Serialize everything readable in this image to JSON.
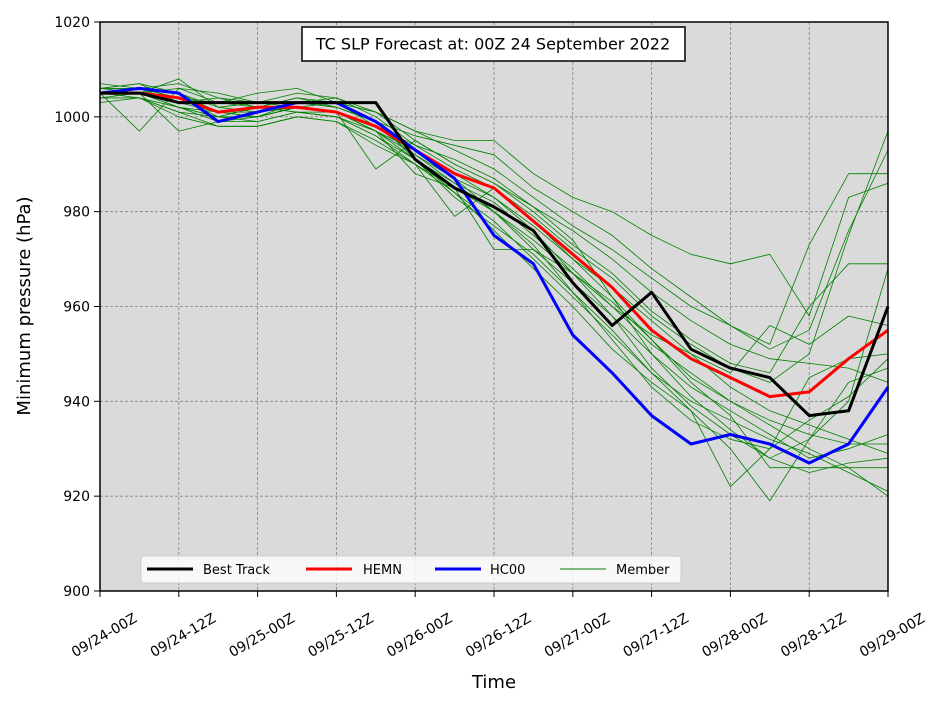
{
  "chart_data": {
    "type": "line",
    "title": "TC SLP Forecast at: 00Z 24 September 2022",
    "xlabel": "Time",
    "ylabel": "Minimum pressure (hPa)",
    "ylim": [
      900,
      1020
    ],
    "yticks": [
      900,
      920,
      940,
      960,
      980,
      1000,
      1020
    ],
    "x_step_hours": 6,
    "xticks": [
      "09/24-00Z",
      "09/24-12Z",
      "09/25-00Z",
      "09/25-12Z",
      "09/26-00Z",
      "09/26-12Z",
      "09/27-00Z",
      "09/27-12Z",
      "09/28-00Z",
      "09/28-12Z",
      "09/29-00Z"
    ],
    "grid": true,
    "background_color": "#dadada",
    "legend_position": "lower-left",
    "series": [
      {
        "name": "Best Track",
        "color": "#000000",
        "values": [
          1005,
          1005,
          1003,
          1003,
          1003,
          1003,
          1003,
          1003,
          991,
          985,
          981,
          976,
          965,
          956,
          963,
          951,
          947,
          945,
          937,
          938,
          960
        ]
      },
      {
        "name": "HEMN",
        "color": "#ff0000",
        "values": [
          1005,
          1005,
          1004,
          1001,
          1002,
          1002,
          1001,
          998,
          993,
          988,
          985,
          978,
          971,
          964,
          955,
          949,
          945,
          941,
          942,
          949,
          955
        ]
      },
      {
        "name": "HC00",
        "color": "#0000ff",
        "values": [
          1005,
          1006,
          1005,
          999,
          1001,
          1003,
          1003,
          999,
          993,
          987,
          975,
          969,
          954,
          946,
          937,
          931,
          933,
          931,
          927,
          931,
          943
        ]
      },
      {
        "name": "Member",
        "color": "#008000",
        "members": [
          [
            1006,
            1006,
            1007,
            1004,
            1002,
            1001,
            1000,
            997,
            991,
            986,
            982,
            975,
            968,
            960,
            952,
            946,
            940,
            935,
            930,
            926,
            920
          ],
          [
            1004,
            1005,
            1006,
            1003,
            1002,
            1004,
            1002,
            999,
            993,
            987,
            980,
            972,
            965,
            958,
            950,
            943,
            938,
            933,
            928,
            930,
            933
          ],
          [
            1005,
            1005,
            1008,
            1002,
            1003,
            1003,
            1004,
            1000,
            994,
            989,
            985,
            979,
            972,
            966,
            958,
            952,
            947,
            944,
            950,
            975,
            997
          ],
          [
            1007,
            1006,
            1004,
            1003,
            1005,
            1006,
            1003,
            1001,
            995,
            990,
            986,
            981,
            976,
            970,
            963,
            957,
            952,
            949,
            948,
            947,
            944
          ],
          [
            1005,
            1004,
            1002,
            1001,
            1000,
            1002,
            1001,
            998,
            992,
            986,
            980,
            974,
            967,
            958,
            947,
            939,
            933,
            928,
            932,
            940,
            968
          ],
          [
            1003,
            1004,
            1001,
            1000,
            999,
            1001,
            1000,
            996,
            990,
            984,
            978,
            970,
            962,
            954,
            946,
            940,
            936,
            932,
            929,
            925,
            921
          ],
          [
            1006,
            1007,
            1003,
            1004,
            1003,
            1005,
            1004,
            1001,
            997,
            993,
            989,
            983,
            977,
            972,
            966,
            960,
            956,
            952,
            973,
            988,
            988
          ],
          [
            1005,
            997,
            1006,
            1005,
            1003,
            1002,
            1001,
            989,
            995,
            990,
            986,
            980,
            973,
            967,
            959,
            953,
            948,
            946,
            960,
            969,
            969
          ],
          [
            1006,
            1006,
            1005,
            1002,
            1001,
            1003,
            1002,
            999,
            996,
            994,
            992,
            985,
            980,
            975,
            968,
            962,
            956,
            951,
            955,
            976,
            993
          ],
          [
            1004,
            1004,
            1000,
            998,
            998,
            1000,
            999,
            995,
            990,
            979,
            985,
            978,
            970,
            962,
            953,
            945,
            940,
            936,
            933,
            931,
            931
          ],
          [
            1005,
            1005,
            997,
            999,
            1000,
            1002,
            1003,
            998,
            994,
            991,
            987,
            981,
            974,
            962,
            950,
            941,
            934,
            928,
            925,
            927,
            928
          ],
          [
            1006,
            1006,
            1003,
            1001,
            1002,
            1004,
            1003,
            1001,
            997,
            995,
            995,
            988,
            983,
            980,
            975,
            971,
            969,
            971,
            958,
            983,
            986
          ],
          [
            1005,
            1006,
            1004,
            1000,
            1002,
            1001,
            1001,
            997,
            988,
            985,
            972,
            972,
            967,
            961,
            953,
            944,
            937,
            926,
            926,
            926,
            926
          ],
          [
            1004,
            1004,
            1001,
            998,
            998,
            1000,
            999,
            994,
            990,
            985,
            980,
            973,
            963,
            953,
            943,
            936,
            932,
            930,
            945,
            949,
            950
          ],
          [
            1005,
            1005,
            1002,
            999,
            999,
            1001,
            1000,
            996,
            991,
            984,
            976,
            968,
            960,
            951,
            944,
            938,
            922,
            930,
            936,
            941,
            949
          ],
          [
            1006,
            1005,
            1004,
            1001,
            1001,
            1002,
            1001,
            997,
            992,
            987,
            983,
            976,
            967,
            960,
            954,
            950,
            946,
            956,
            952,
            958,
            956
          ],
          [
            1005,
            1005,
            1002,
            1000,
            1000,
            1002,
            1001,
            997,
            993,
            988,
            983,
            977,
            970,
            964,
            957,
            950,
            943,
            938,
            935,
            932,
            929
          ],
          [
            1006,
            1007,
            1005,
            1001,
            1000,
            1003,
            1002,
            999,
            991,
            983,
            977,
            971,
            963,
            955,
            946,
            938,
            930,
            919,
            932,
            944,
            947
          ]
        ]
      }
    ],
    "legend": [
      "Best Track",
      "HEMN",
      "HC00",
      "Member"
    ]
  }
}
